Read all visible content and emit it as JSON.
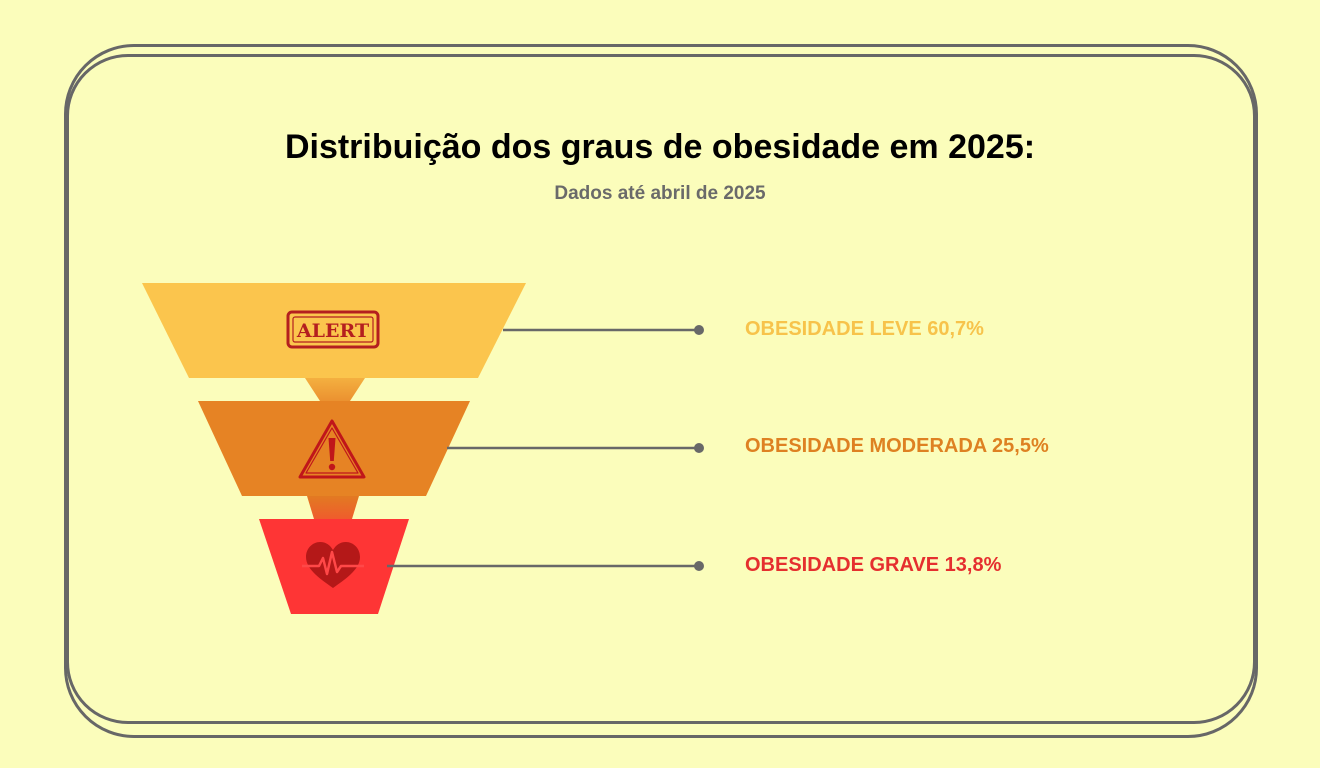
{
  "title": "Distribuição dos graus de obesidade em 2025:",
  "subtitle": "Dados até abril de 2025",
  "icons": [
    "alert-stamp-icon",
    "warning-triangle-icon",
    "heart-pulse-icon"
  ],
  "alert_stamp_text": "ALERT",
  "chart_data": {
    "type": "funnel",
    "categories": [
      "OBESIDADE LEVE",
      "OBESIDADE MODERADA",
      "OBESIDADE GRAVE"
    ],
    "values": [
      60.7,
      25.5,
      13.8
    ],
    "value_labels": [
      "60,7%",
      "25,5%",
      "13,8%"
    ],
    "colors": [
      "#fbc54d",
      "#e68324",
      "#fe3535"
    ]
  },
  "labels": [
    "OBESIDADE LEVE 60,7%",
    "OBESIDADE MODERADA 25,5%",
    "OBESIDADE GRAVE 13,8%"
  ]
}
